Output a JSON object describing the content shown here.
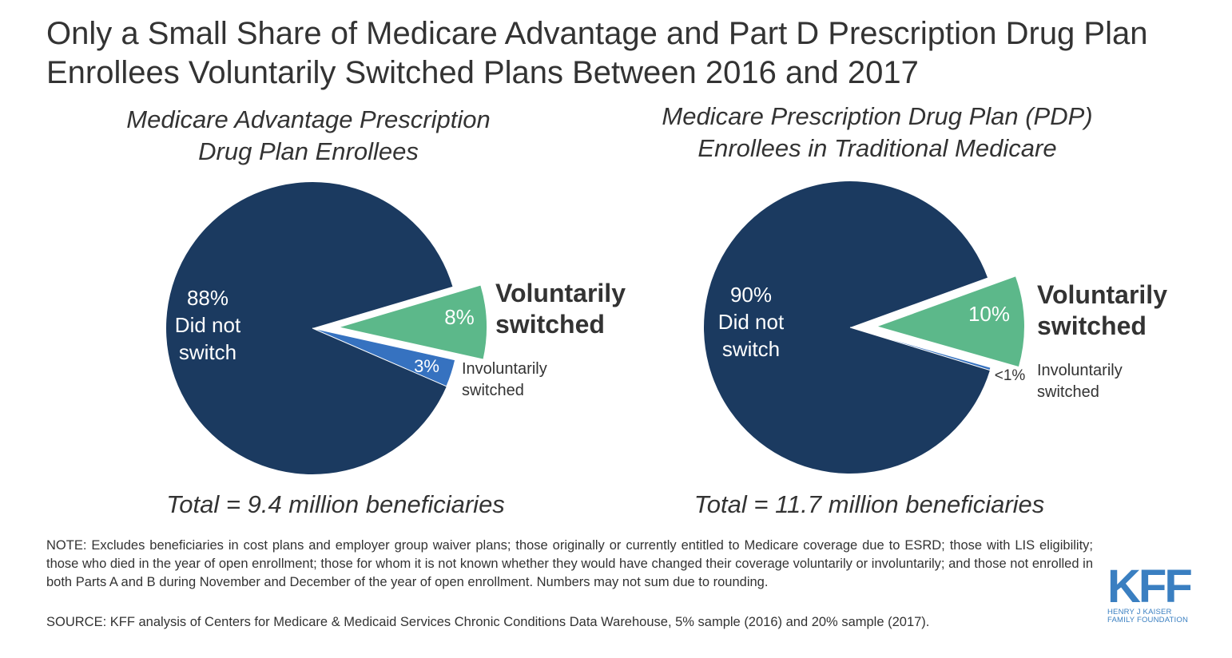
{
  "title": "Only a Small Share of Medicare Advantage and Part D Prescription Drug Plan Enrollees Voluntarily Switched Plans Between 2016 and 2017",
  "colors": {
    "did_not_switch": "#1b3a60",
    "voluntarily_switched": "#5cb88a",
    "involuntarily_switched": "#3672c0",
    "text": "#333333",
    "logo": "#3a7fc1"
  },
  "chart_data": [
    {
      "type": "pie",
      "title": "Medicare Advantage Prescription\nDrug Plan Enrollees",
      "total_label": "Total = 9.4 million beneficiaries",
      "slices": [
        {
          "name": "Did not switch",
          "value": 88,
          "label": "88%\nDid not\nswitch"
        },
        {
          "name": "Voluntarily switched",
          "value": 8,
          "label": "8%",
          "exploded": true
        },
        {
          "name": "Involuntarily switched",
          "value": 3,
          "label": "3%"
        }
      ],
      "annotations": {
        "voluntary": "Voluntarily\nswitched",
        "involuntary": "Involuntarily\nswitched"
      }
    },
    {
      "type": "pie",
      "title": "Medicare Prescription Drug Plan (PDP)\nEnrollees in Traditional Medicare",
      "total_label": "Total = 11.7 million beneficiaries",
      "slices": [
        {
          "name": "Did not switch",
          "value": 90,
          "label": "90%\nDid not\nswitch"
        },
        {
          "name": "Voluntarily switched",
          "value": 10,
          "label": "10%",
          "exploded": true
        },
        {
          "name": "Involuntarily switched",
          "value": 0.3,
          "label": "<1%"
        }
      ],
      "annotations": {
        "voluntary": "Voluntarily\nswitched",
        "involuntary": "Involuntarily\nswitched"
      }
    }
  ],
  "note": "NOTE: Excludes beneficiaries in cost plans and employer group waiver plans; those originally or currently entitled to Medicare coverage due to ESRD; those with LIS eligibility; those who died in the year of open enrollment; those for whom it is not known whether they would have changed their coverage voluntarily or involuntarily; and those not enrolled in both Parts A and B during November and December of the year of open enrollment. Numbers may not sum due to rounding.",
  "source": "SOURCE: KFF analysis of Centers for Medicare & Medicaid Services Chronic Conditions Data Warehouse, 5% sample (2016) and 20% sample (2017).",
  "logo": {
    "mark": "KFF",
    "line1": "HENRY J KAISER",
    "line2": "FAMILY FOUNDATION"
  }
}
